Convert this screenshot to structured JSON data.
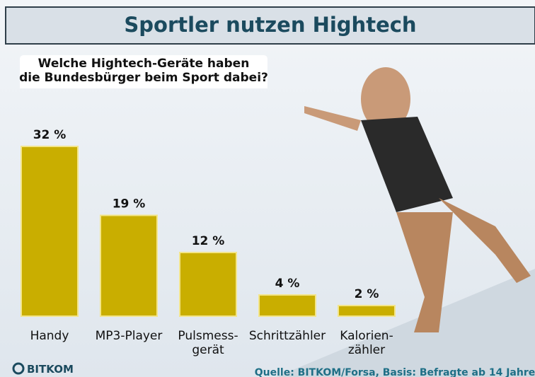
{
  "chart_data": {
    "type": "bar",
    "title": "Sportler nutzen Hightech",
    "subtitle": "Welche Hightech-Geräte haben\ndie Bundesbürger beim Sport dabei?",
    "categories": [
      "Handy",
      "MP3-Player",
      "Pulsmess-\ngerät",
      "Schrittzähler",
      "Kalorien-\nzähler"
    ],
    "values": [
      32,
      19,
      12,
      4,
      2
    ],
    "value_labels": [
      "32 %",
      "19 %",
      "12 %",
      "4 %",
      "2 %"
    ],
    "color": "#c9ae00",
    "source": "Quelle: BITKOM/Forsa, Basis: Befragte ab 14 Jahre",
    "logo": "BITKOM"
  }
}
